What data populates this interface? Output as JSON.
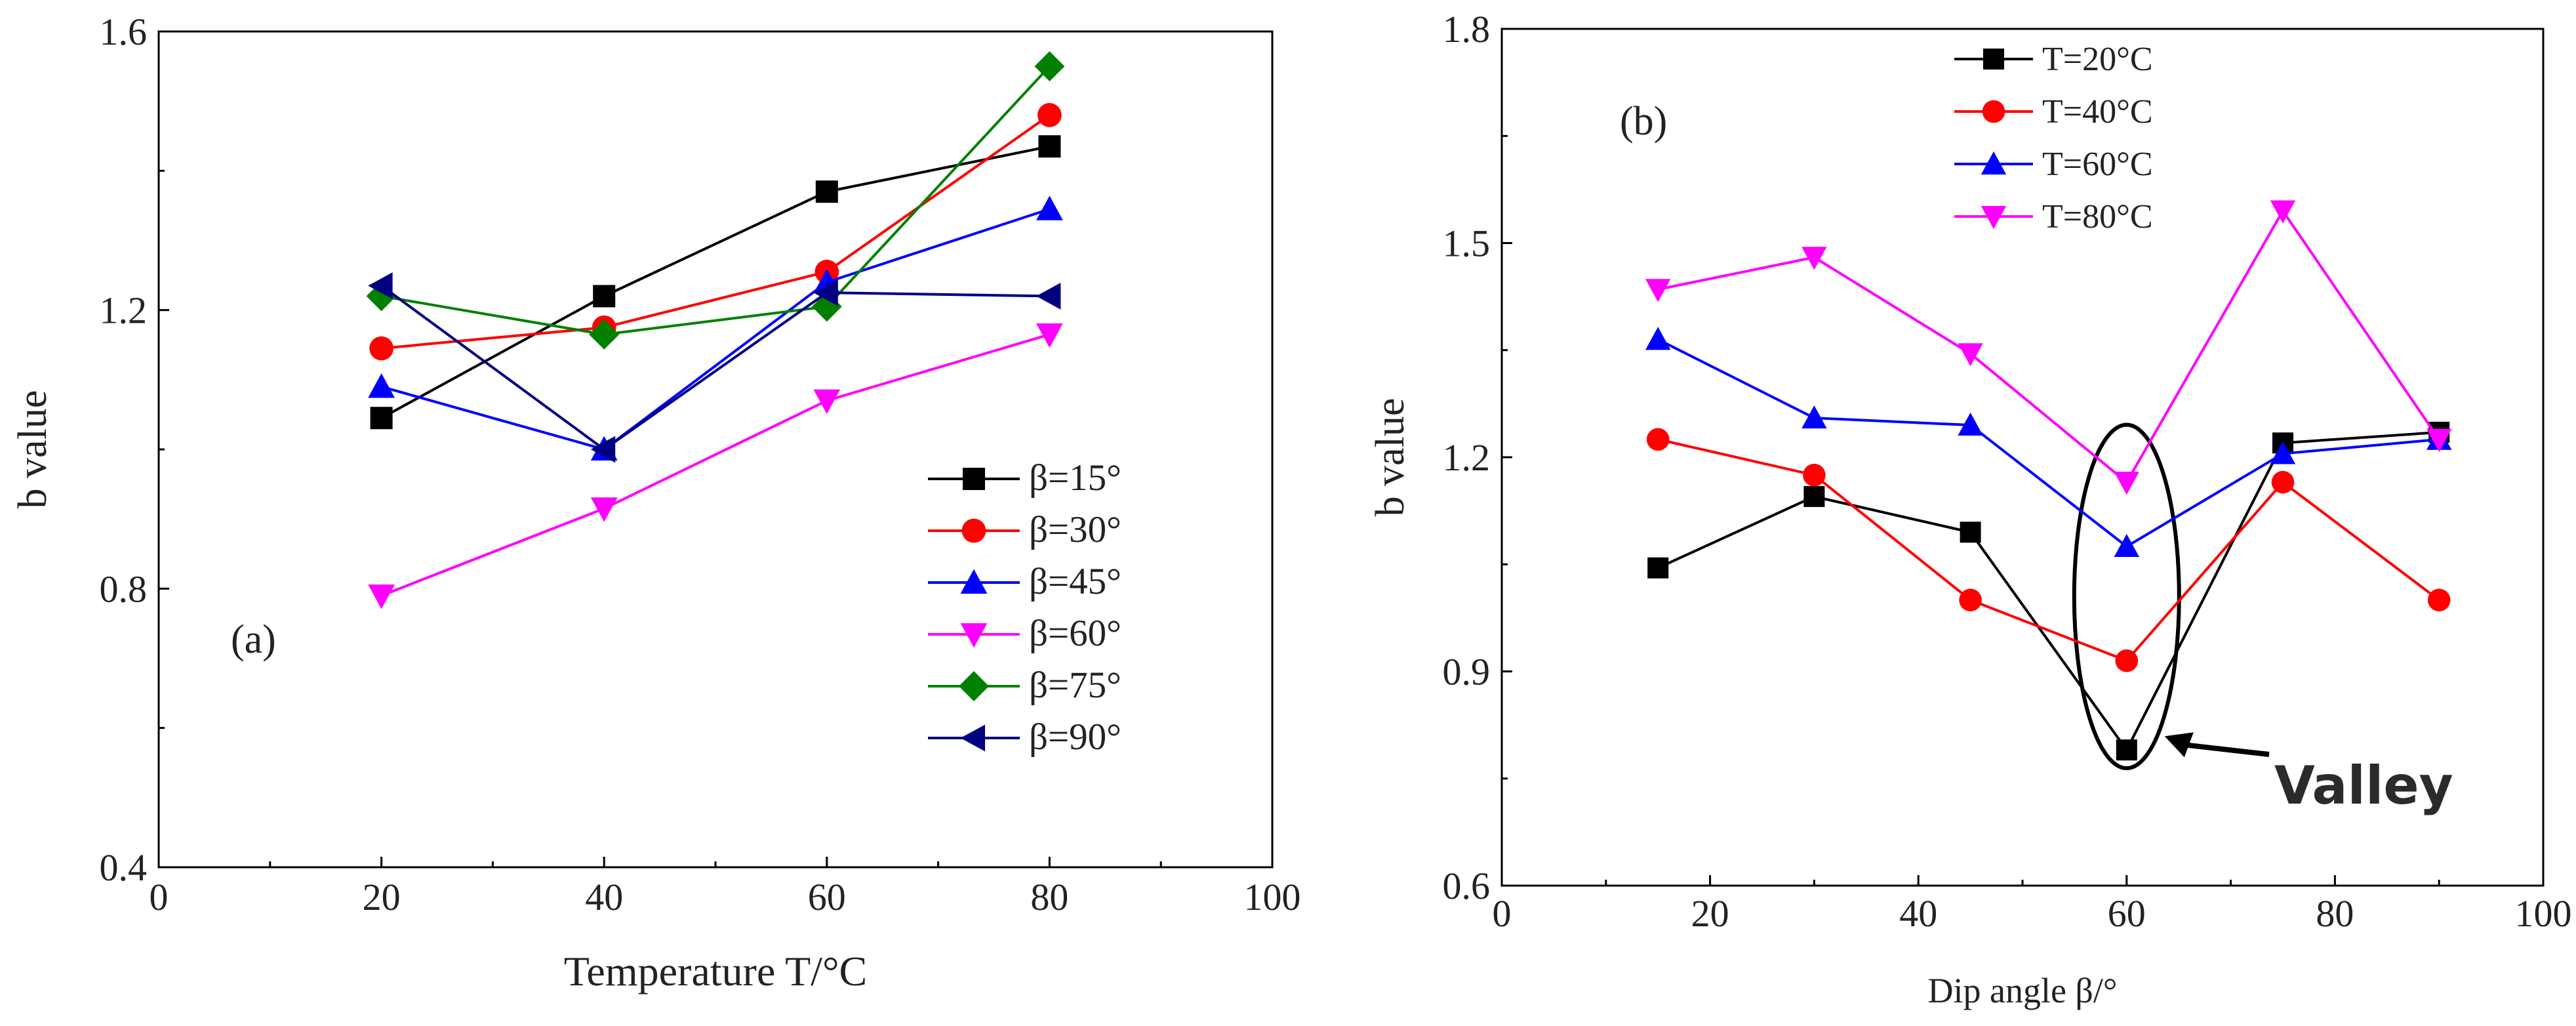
{
  "chart_data": [
    {
      "id": "a",
      "type": "line",
      "panel_label": "(a)",
      "title": "",
      "xlabel": "Temperature T/°C",
      "ylabel": "b value",
      "xlim": [
        0,
        100
      ],
      "ylim": [
        0.4,
        1.6
      ],
      "xticks": [
        0,
        20,
        40,
        60,
        80,
        100
      ],
      "xtick_labels": [
        "0",
        "20",
        "40",
        "60",
        "80",
        "100"
      ],
      "yticks": [
        0.4,
        0.8,
        1.2,
        1.6
      ],
      "ytick_labels": [
        "0.4",
        "0.8",
        "1.2",
        "1.6"
      ],
      "legend_position": "bottom-right",
      "x": [
        20,
        40,
        60,
        80
      ],
      "series": [
        {
          "name": "β=15°",
          "color": "#000000",
          "marker": "square",
          "values": [
            1.045,
            1.22,
            1.37,
            1.435
          ]
        },
        {
          "name": "β=30°",
          "color": "#ff0000",
          "marker": "circle",
          "values": [
            1.145,
            1.175,
            1.255,
            1.48
          ]
        },
        {
          "name": "β=45°",
          "color": "#0000ff",
          "marker": "triangle-up",
          "values": [
            1.09,
            1.0,
            1.24,
            1.345
          ]
        },
        {
          "name": "β=60°",
          "color": "#ff00ff",
          "marker": "triangle-down",
          "values": [
            0.79,
            0.915,
            1.07,
            1.165
          ]
        },
        {
          "name": "β=75°",
          "color": "#008000",
          "marker": "diamond",
          "values": [
            1.22,
            1.165,
            1.205,
            1.55
          ]
        },
        {
          "name": "β=90°",
          "color": "#000080",
          "marker": "triangle-left",
          "values": [
            1.235,
            1.0,
            1.225,
            1.22
          ]
        }
      ]
    },
    {
      "id": "b",
      "type": "line",
      "panel_label": "(b)",
      "title": "",
      "xlabel": "Dip angle β/°",
      "ylabel": "b value",
      "xlim": [
        0,
        100
      ],
      "ylim": [
        0.6,
        1.8
      ],
      "xticks": [
        0,
        20,
        40,
        60,
        80,
        100
      ],
      "xtick_labels": [
        "0",
        "20",
        "40",
        "60",
        "80",
        "100"
      ],
      "yticks": [
        0.6,
        0.9,
        1.2,
        1.5,
        1.8
      ],
      "ytick_labels": [
        "0.6",
        "0.9",
        "1.2",
        "1.5",
        "1.8"
      ],
      "legend_position": "top-center",
      "x": [
        15,
        30,
        45,
        60,
        75,
        90
      ],
      "series": [
        {
          "name": "T=20°C",
          "color": "#000000",
          "marker": "square",
          "values": [
            1.045,
            1.145,
            1.095,
            0.79,
            1.22,
            1.235
          ]
        },
        {
          "name": "T=40°C",
          "color": "#ff0000",
          "marker": "circle",
          "values": [
            1.225,
            1.175,
            1.0,
            0.915,
            1.165,
            1.0
          ]
        },
        {
          "name": "T=60°C",
          "color": "#0000ff",
          "marker": "triangle-up",
          "values": [
            1.365,
            1.255,
            1.245,
            1.075,
            1.205,
            1.225
          ]
        },
        {
          "name": "T=80°C",
          "color": "#ff00ff",
          "marker": "triangle-down",
          "values": [
            1.435,
            1.48,
            1.345,
            1.165,
            1.545,
            1.225
          ]
        }
      ],
      "annotation": {
        "text": "Valley",
        "x": 60,
        "y_low": 0.77,
        "y_high": 1.24
      }
    }
  ]
}
